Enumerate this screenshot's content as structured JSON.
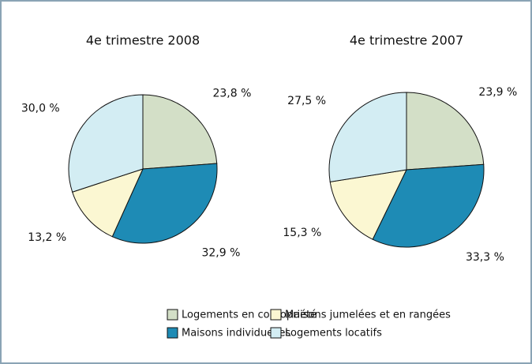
{
  "chart_data": [
    {
      "type": "pie",
      "title": "4e trimestre 2008",
      "values": [
        23.8,
        32.9,
        13.2,
        30.0
      ],
      "value_labels": [
        "23,8 %",
        "32,9 %",
        "13,2 %",
        "30,0 %"
      ]
    },
    {
      "type": "pie",
      "title": "4e trimestre 2007",
      "values": [
        23.9,
        33.3,
        15.3,
        27.5
      ],
      "value_labels": [
        "23,9 %",
        "33,3 %",
        "15,3 %",
        "27,5 %"
      ]
    }
  ],
  "legend": {
    "categories": [
      "Logements en copropriété",
      "Maisons individuelles",
      "Maisons jumelées et en rangées",
      "Logements locatifs"
    ],
    "colors": [
      "#d3dfc7",
      "#1e8bb5",
      "#fbf7d2",
      "#d3edf3"
    ]
  }
}
